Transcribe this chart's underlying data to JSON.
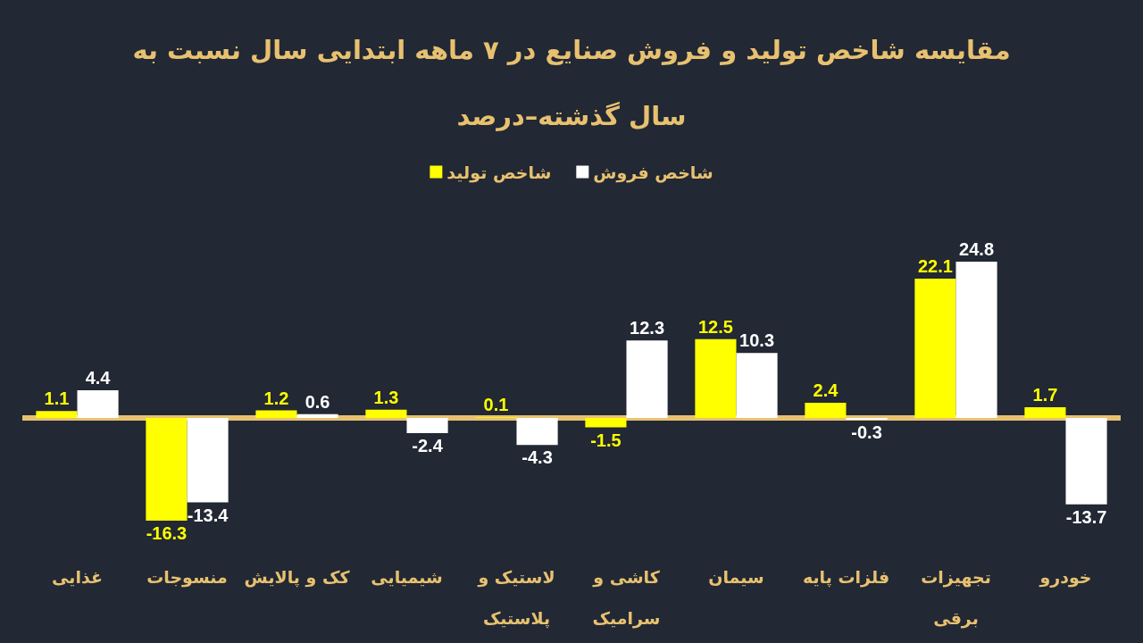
{
  "chart_data": {
    "type": "bar",
    "title": "مقایسه شاخص تولید و فروش صنایع در ۷ ماهه ابتدایی سال نسبت به\nسال گذشته–درصد",
    "categories": [
      "غذایی",
      "منسوجات",
      "کک و پالایش",
      "شیمیایی",
      "لاستیک و\nپلاستیک",
      "کاشی و\nسرامیک",
      "سیمان",
      "فلزات پایه",
      "تجهیزات\nبرقی",
      "خودرو"
    ],
    "series": [
      {
        "name": "شاخص تولید",
        "color": "#ffff00",
        "values": [
          1.1,
          -16.3,
          1.2,
          1.3,
          0.1,
          -1.5,
          12.5,
          2.4,
          22.1,
          1.7
        ]
      },
      {
        "name": "شاخص فروش",
        "color": "#ffffff",
        "values": [
          4.4,
          -13.4,
          0.6,
          -2.4,
          -4.3,
          12.3,
          10.3,
          -0.3,
          24.8,
          -13.7
        ]
      }
    ],
    "ref_lines": [
      {
        "axis": "y",
        "value": 0,
        "color": "#e8c170"
      }
    ],
    "data_labels": true,
    "legend": "top",
    "tick_labels": "x"
  }
}
